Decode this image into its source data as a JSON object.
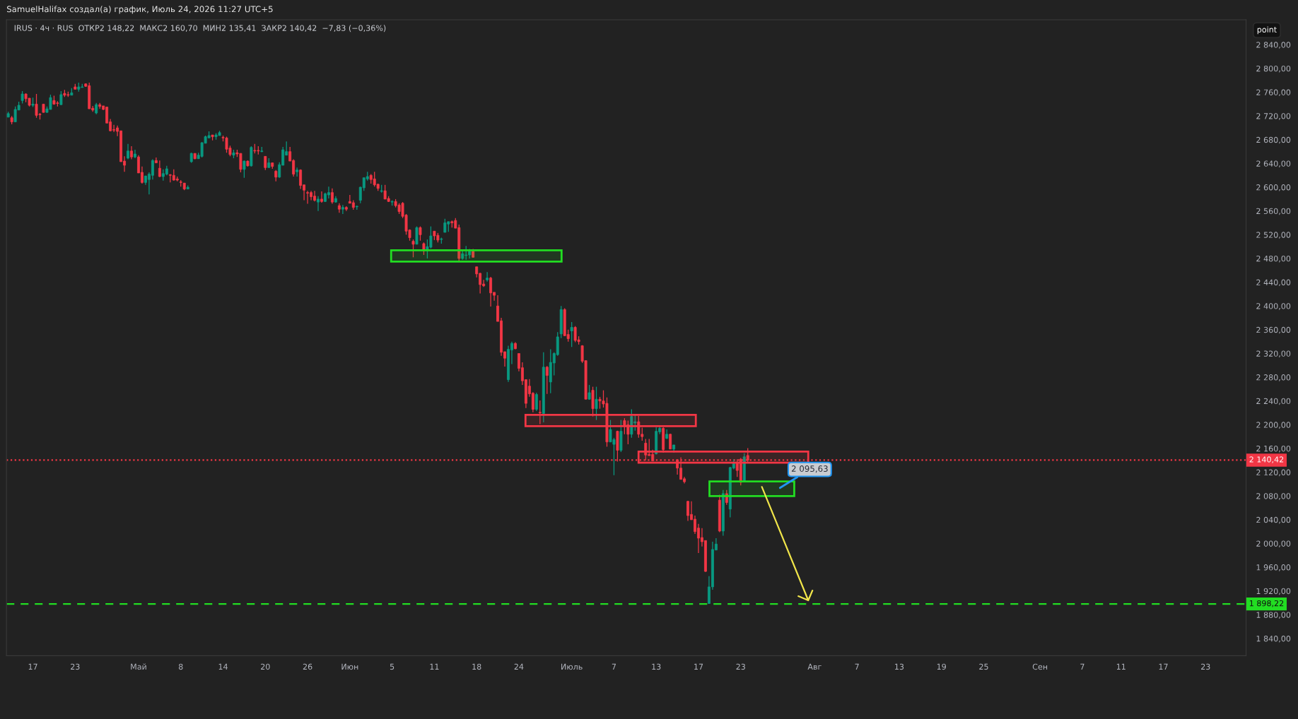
{
  "chart_data": {
    "type": "candlestick",
    "title": "SamuelHalifax создал(а) график, Июль 24, 2026 11:27 UTC+5",
    "subtitle": "IRUS · 4ч · RUS  ОТКР2 148,22  МАКС2 160,70  МИН2 135,41  ЗАКР2 140,42  −7,83 (−0,36%)",
    "categories": [
      null,
      null,
      null,
      null,
      null,
      null,
      null,
      "17",
      null,
      null,
      null,
      null,
      null,
      null,
      null,
      null,
      null,
      null,
      null,
      "23",
      null,
      null,
      null,
      null,
      null,
      null,
      null,
      null,
      null,
      null,
      null,
      null,
      null,
      null,
      null,
      null,
      null,
      "Май",
      null,
      null,
      null,
      null,
      null,
      null,
      null,
      null,
      null,
      null,
      null,
      "8",
      null,
      null,
      null,
      null,
      null,
      null,
      null,
      null,
      null,
      null,
      null,
      "14",
      null,
      null,
      null,
      null,
      null,
      null,
      null,
      null,
      null,
      null,
      null,
      "20",
      null,
      null,
      null,
      null,
      null,
      null,
      null,
      null,
      null,
      null,
      null,
      "26",
      null,
      null,
      null,
      null,
      null,
      null,
      null,
      null,
      null,
      null,
      null,
      "Июн",
      null,
      null,
      null,
      null,
      null,
      null,
      null,
      null,
      null,
      null,
      null,
      "5",
      null,
      null,
      null,
      null,
      null,
      null,
      null,
      null,
      null,
      null,
      null,
      "11",
      null,
      null,
      null,
      null,
      null,
      null,
      null,
      null,
      null,
      null,
      null,
      "18",
      null,
      null,
      null,
      null,
      null,
      null,
      null,
      null,
      null,
      null,
      null,
      "24",
      null,
      null,
      null,
      null,
      null,
      null,
      null,
      null,
      null,
      null,
      null,
      null,
      null,
      null,
      "Июль",
      null,
      null,
      null,
      null,
      null,
      null,
      null,
      null,
      null,
      null,
      null,
      "7",
      null,
      null,
      null,
      null,
      null,
      null,
      null,
      null,
      null,
      null,
      null,
      "13",
      null,
      null,
      null,
      null,
      null,
      null,
      null,
      null,
      null,
      null,
      null,
      "17",
      null,
      null,
      null,
      null,
      null,
      null,
      null,
      null,
      null,
      null,
      null,
      "23",
      null,
      null,
      null,
      null,
      null,
      null,
      null,
      null,
      null,
      null,
      null,
      null,
      null,
      null,
      null,
      null,
      null,
      null,
      null,
      null,
      "Авг",
      null,
      null,
      null,
      null,
      null,
      null,
      null,
      null,
      null,
      null,
      null,
      "7",
      null,
      null,
      null,
      null,
      null,
      null,
      null,
      null,
      null,
      null,
      null,
      "13",
      null,
      null,
      null,
      null,
      null,
      null,
      null,
      null,
      null,
      null,
      null,
      "19",
      null,
      null,
      null,
      null,
      null,
      null,
      null,
      null,
      null,
      null,
      null,
      "25",
      null,
      null,
      null,
      null,
      null,
      null,
      null,
      null,
      null,
      null,
      null,
      null,
      null,
      null,
      null,
      "Сен",
      null,
      null,
      null,
      null,
      null,
      null,
      null,
      null,
      null,
      null,
      null,
      "7",
      null,
      null,
      null,
      null,
      null,
      null,
      null,
      null,
      null,
      null,
      "11",
      null,
      null,
      null,
      null,
      null,
      null,
      null,
      null,
      null,
      null,
      null,
      "17",
      null,
      null,
      null,
      null,
      null,
      null,
      null,
      null,
      null,
      null,
      null,
      "23",
      null,
      null,
      null,
      null,
      null,
      null,
      null,
      null,
      null,
      null,
      null
    ],
    "ohlc": [
      [
        2718,
        2727,
        2718,
        2724
      ],
      [
        2717,
        2720,
        2706,
        2710
      ],
      [
        2710,
        2736,
        2710,
        2731
      ],
      [
        2730,
        2744,
        2730,
        2738
      ],
      [
        2746,
        2762,
        2741,
        2757
      ],
      [
        2757,
        2758,
        2743,
        2749
      ],
      [
        2750,
        2750,
        2736,
        2738
      ],
      [
        2738,
        2751,
        2735,
        2740
      ],
      [
        2740,
        2757,
        2717,
        2721
      ],
      [
        2723,
        2725,
        2714,
        2722
      ],
      [
        2740,
        2740,
        2726,
        2726
      ],
      [
        2726,
        2736,
        2726,
        2732
      ],
      [
        2731,
        2756,
        2731,
        2751
      ],
      [
        2746,
        2754,
        2739,
        2740
      ],
      [
        2742,
        2745,
        2736,
        2741
      ],
      [
        2739,
        2762,
        2739,
        2756
      ],
      [
        2758,
        2764,
        2752,
        2755
      ],
      [
        2756,
        2761,
        2752,
        2755
      ],
      [
        2755,
        2767,
        2755,
        2759
      ],
      [
        2769,
        2774,
        2765,
        2765
      ],
      [
        2765,
        2776,
        2761,
        2769
      ],
      [
        2768,
        2774,
        2768,
        2769
      ],
      [
        2774,
        2775,
        2769,
        2770
      ],
      [
        2771,
        2776,
        2732,
        2732
      ],
      [
        2733,
        2737,
        2727,
        2730
      ],
      [
        2725,
        2742,
        2723,
        2739
      ],
      [
        2739,
        2742,
        2732,
        2736
      ],
      [
        2737,
        2737,
        2730,
        2731
      ],
      [
        2735,
        2735,
        2708,
        2708
      ],
      [
        2710,
        2715,
        2694,
        2695
      ],
      [
        2697,
        2705,
        2693,
        2696
      ],
      [
        2700,
        2704,
        2686,
        2694
      ],
      [
        2695,
        2695,
        2643,
        2643
      ],
      [
        2644,
        2652,
        2626,
        2637
      ],
      [
        2649,
        2673,
        2647,
        2661
      ],
      [
        2661,
        2669,
        2647,
        2651
      ],
      [
        2651,
        2663,
        2649,
        2656
      ],
      [
        2651,
        2654,
        2624,
        2624
      ],
      [
        2625,
        2635,
        2606,
        2608
      ],
      [
        2608,
        2619,
        2604,
        2619
      ],
      [
        2613,
        2625,
        2588,
        2622
      ],
      [
        2620,
        2647,
        2613,
        2645
      ],
      [
        2645,
        2650,
        2641,
        2641
      ],
      [
        2632,
        2645,
        2617,
        2618
      ],
      [
        2618,
        2630,
        2611,
        2623
      ],
      [
        2622,
        2636,
        2620,
        2631
      ],
      [
        2621,
        2622,
        2608,
        2620
      ],
      [
        2620,
        2630,
        2611,
        2612
      ],
      [
        2614,
        2618,
        2610,
        2612
      ],
      [
        2609,
        2612,
        2601,
        2608
      ],
      [
        2607,
        2607,
        2595,
        2597
      ],
      [
        2597,
        2603,
        2597,
        2600
      ],
      [
        2643,
        2658,
        2641,
        2657
      ],
      [
        2657,
        2657,
        2647,
        2648
      ],
      [
        2648,
        2658,
        2648,
        2654
      ],
      [
        2652,
        2676,
        2650,
        2675
      ],
      [
        2674,
        2687,
        2674,
        2685
      ],
      [
        2683,
        2694,
        2683,
        2687
      ],
      [
        2688,
        2688,
        2679,
        2685
      ],
      [
        2685,
        2691,
        2680,
        2688
      ],
      [
        2687,
        2695,
        2687,
        2692
      ],
      [
        2684,
        2687,
        2677,
        2683
      ],
      [
        2683,
        2685,
        2658,
        2664
      ],
      [
        2666,
        2670,
        2652,
        2655
      ],
      [
        2654,
        2663,
        2649,
        2658
      ],
      [
        2658,
        2663,
        2651,
        2656
      ],
      [
        2657,
        2657,
        2625,
        2630
      ],
      [
        2630,
        2645,
        2616,
        2644
      ],
      [
        2644,
        2645,
        2635,
        2636
      ],
      [
        2636,
        2669,
        2635,
        2667
      ],
      [
        2662,
        2673,
        2657,
        2661
      ],
      [
        2662,
        2669,
        2655,
        2661
      ],
      [
        2660,
        2668,
        2659,
        2661
      ],
      [
        2652,
        2652,
        2629,
        2633
      ],
      [
        2633,
        2649,
        2633,
        2641
      ],
      [
        2641,
        2641,
        2631,
        2635
      ],
      [
        2627,
        2629,
        2610,
        2617
      ],
      [
        2617,
        2642,
        2616,
        2638
      ],
      [
        2637,
        2668,
        2637,
        2663
      ],
      [
        2654,
        2677,
        2654,
        2660
      ],
      [
        2660,
        2668,
        2644,
        2644
      ],
      [
        2645,
        2647,
        2618,
        2622
      ],
      [
        2626,
        2633,
        2618,
        2629
      ],
      [
        2629,
        2630,
        2597,
        2603
      ],
      [
        2604,
        2604,
        2578,
        2595
      ],
      [
        2591,
        2594,
        2572,
        2590
      ],
      [
        2591,
        2594,
        2578,
        2584
      ],
      [
        2585,
        2594,
        2576,
        2578
      ],
      [
        2575,
        2585,
        2560,
        2580
      ],
      [
        2580,
        2593,
        2574,
        2576
      ],
      [
        2576,
        2591,
        2575,
        2589
      ],
      [
        2587,
        2601,
        2581,
        2591
      ],
      [
        2591,
        2598,
        2572,
        2575
      ],
      [
        2575,
        2585,
        2574,
        2581
      ],
      [
        2569,
        2573,
        2557,
        2563
      ],
      [
        2563,
        2570,
        2555,
        2566
      ],
      [
        2566,
        2568,
        2560,
        2563
      ],
      [
        2576,
        2587,
        2573,
        2573
      ],
      [
        2574,
        2578,
        2562,
        2566
      ],
      [
        2567,
        2569,
        2562,
        2568
      ],
      [
        2578,
        2601,
        2573,
        2600
      ],
      [
        2599,
        2616,
        2594,
        2616
      ],
      [
        2614,
        2626,
        2611,
        2618
      ],
      [
        2620,
        2622,
        2606,
        2613
      ],
      [
        2614,
        2626,
        2601,
        2604
      ],
      [
        2605,
        2606,
        2594,
        2598
      ],
      [
        2593,
        2604,
        2591,
        2594
      ],
      [
        2594,
        2604,
        2580,
        2580
      ],
      [
        2581,
        2585,
        2575,
        2576
      ],
      [
        2575,
        2578,
        2569,
        2576
      ],
      [
        2576,
        2580,
        2566,
        2569
      ],
      [
        2570,
        2573,
        2555,
        2559
      ],
      [
        2573,
        2575,
        2548,
        2551
      ],
      [
        2553,
        2555,
        2520,
        2526
      ],
      [
        2528,
        2529,
        2510,
        2515
      ],
      [
        2509,
        2512,
        2482,
        2504
      ],
      [
        2504,
        2534,
        2504,
        2532
      ],
      [
        2532,
        2534,
        2510,
        2520
      ],
      [
        2505,
        2507,
        2486,
        2493
      ],
      [
        2493,
        2512,
        2480,
        2500
      ],
      [
        2499,
        2534,
        2497,
        2518
      ],
      [
        2526,
        2526,
        2511,
        2518
      ],
      [
        2519,
        2523,
        2507,
        2511
      ],
      [
        2512,
        2515,
        2505,
        2513
      ],
      [
        2524,
        2547,
        2524,
        2540
      ],
      [
        2538,
        2542,
        2525,
        2542
      ],
      [
        2542,
        2544,
        2532,
        2540
      ],
      [
        2544,
        2548,
        2531,
        2531
      ],
      [
        2532,
        2537,
        2474,
        2480
      ],
      [
        2480,
        2494,
        2478,
        2488
      ],
      [
        2485,
        2501,
        2478,
        2486
      ],
      [
        2486,
        2496,
        2480,
        2492
      ],
      [
        2492,
        2496,
        2482,
        2482
      ],
      [
        2466,
        2466,
        2448,
        2454
      ],
      [
        2455,
        2456,
        2421,
        2436
      ],
      [
        2437,
        2444,
        2432,
        2434
      ],
      [
        2444,
        2457,
        2441,
        2447
      ],
      [
        2447,
        2449,
        2399,
        2422
      ],
      [
        2423,
        2423,
        2409,
        2418
      ],
      [
        2400,
        2418,
        2374,
        2374
      ],
      [
        2375,
        2380,
        2316,
        2322
      ],
      [
        2323,
        2323,
        2298,
        2312
      ],
      [
        2276,
        2333,
        2272,
        2327
      ],
      [
        2326,
        2340,
        2302,
        2337
      ],
      [
        2337,
        2339,
        2327,
        2328
      ],
      [
        2320,
        2320,
        2290,
        2295
      ],
      [
        2296,
        2305,
        2267,
        2274
      ],
      [
        2276,
        2276,
        2228,
        2236
      ],
      [
        2265,
        2277,
        2247,
        2252
      ],
      [
        2253,
        2255,
        2221,
        2226
      ],
      [
        2226,
        2254,
        2223,
        2251
      ],
      [
        2221,
        2241,
        2201,
        2220
      ],
      [
        2219,
        2322,
        2204,
        2297
      ],
      [
        2297,
        2299,
        2252,
        2283
      ],
      [
        2272,
        2327,
        2253,
        2305
      ],
      [
        2304,
        2322,
        2283,
        2320
      ],
      [
        2318,
        2356,
        2316,
        2348
      ],
      [
        2353,
        2400,
        2346,
        2394
      ],
      [
        2394,
        2396,
        2349,
        2350
      ],
      [
        2352,
        2360,
        2340,
        2345
      ],
      [
        2358,
        2373,
        2331,
        2364
      ],
      [
        2364,
        2366,
        2339,
        2342
      ],
      [
        2343,
        2349,
        2335,
        2340
      ],
      [
        2333,
        2334,
        2304,
        2307
      ],
      [
        2308,
        2308,
        2243,
        2243
      ],
      [
        2243,
        2267,
        2242,
        2254
      ],
      [
        2258,
        2264,
        2214,
        2227
      ],
      [
        2227,
        2264,
        2208,
        2243
      ],
      [
        2243,
        2247,
        2227,
        2240
      ],
      [
        2240,
        2258,
        2229,
        2235
      ],
      [
        2236,
        2246,
        2163,
        2171
      ],
      [
        2171,
        2208,
        2171,
        2192
      ],
      [
        2167,
        2178,
        2115,
        2175
      ],
      [
        2189,
        2190,
        2138,
        2157
      ],
      [
        2157,
        2208,
        2154,
        2189
      ],
      [
        2207,
        2211,
        2184,
        2197
      ],
      [
        2200,
        2207,
        2167,
        2184
      ],
      [
        2184,
        2226,
        2178,
        2214
      ],
      [
        2203,
        2216,
        2190,
        2205
      ],
      [
        2205,
        2215,
        2178,
        2184
      ],
      [
        2184,
        2195,
        2173,
        2180
      ],
      [
        2169,
        2176,
        2140,
        2149
      ],
      [
        2150,
        2176,
        2148,
        2148
      ],
      [
        2150,
        2158,
        2139,
        2139
      ],
      [
        2151,
        2196,
        2150,
        2189
      ],
      [
        2188,
        2199,
        2184,
        2194
      ],
      [
        2194,
        2196,
        2153,
        2158
      ],
      [
        2177,
        2192,
        2176,
        2184
      ],
      [
        2184,
        2185,
        2159,
        2159
      ],
      [
        2159,
        2166,
        2153,
        2166
      ],
      [
        2141,
        2142,
        2116,
        2127
      ],
      [
        2127,
        2145,
        2108,
        2108
      ],
      [
        2109,
        2112,
        2101,
        2104
      ],
      [
        2071,
        2072,
        2038,
        2047
      ],
      [
        2049,
        2071,
        2040,
        2040
      ],
      [
        2041,
        2047,
        2016,
        2020
      ],
      [
        2026,
        2033,
        1984,
        2009
      ],
      [
        2010,
        2026,
        1995,
        2003
      ],
      [
        2005,
        2005,
        1952,
        1953
      ],
      [
        1899,
        1945,
        1898.22,
        1927
      ],
      [
        1927,
        2003,
        1922,
        1990
      ],
      [
        1989,
        2009,
        1989,
        1999
      ],
      [
        2073,
        2082,
        2019,
        2021
      ],
      [
        2021,
        2090,
        2013,
        2084
      ],
      [
        2084,
        2090,
        2065,
        2069
      ],
      [
        2058,
        2129,
        2044,
        2128
      ],
      [
        2127,
        2142,
        2125,
        2137
      ],
      [
        2135,
        2142,
        2112,
        2123
      ],
      [
        2142,
        2144,
        2098,
        2103
      ],
      [
        2104,
        2152,
        2103,
        2146
      ],
      [
        2148.22,
        2160.7,
        2135.41,
        2140.42
      ],
      null,
      null,
      null,
      null,
      null,
      null,
      null,
      null,
      null,
      null,
      null,
      null,
      null,
      null,
      null,
      null,
      null,
      null,
      null,
      null,
      null,
      null,
      null,
      null,
      null,
      null,
      null,
      null,
      null,
      null,
      null,
      null,
      null,
      null,
      null,
      null,
      null,
      null,
      null,
      null,
      null,
      null,
      null,
      null,
      null,
      null,
      null,
      null,
      null,
      null,
      null,
      null,
      null,
      null,
      null,
      null,
      null,
      null,
      null,
      null,
      null,
      null,
      null,
      null,
      null,
      null,
      null,
      null,
      null,
      null,
      null,
      null,
      null,
      null,
      null,
      null,
      null,
      null,
      null,
      null,
      null,
      null,
      null,
      null,
      null,
      null,
      null,
      null,
      null,
      null,
      null,
      null,
      null,
      null,
      null,
      null,
      null,
      null,
      null,
      null,
      null,
      null,
      null,
      null,
      null,
      null,
      null,
      null,
      null,
      null,
      null,
      null,
      null,
      null,
      null,
      null,
      null,
      null,
      null,
      null,
      null,
      null,
      null,
      null,
      null,
      null,
      null,
      null,
      null,
      null,
      null,
      null,
      null,
      null,
      null,
      null,
      null,
      null,
      null,
      null,
      null
    ],
    "colors": [
      "#089981",
      "#f23645",
      "#089981",
      "#089981",
      "#089981",
      "#f23645",
      "#f23645",
      "#089981",
      "#f23645",
      "#f23645",
      "#f23645",
      "#089981",
      "#089981",
      "#f23645",
      "#f23645",
      "#089981",
      "#f23645",
      "#f23645",
      "#089981",
      "#f23645",
      "#089981",
      "#089981",
      "#f23645",
      "#f23645",
      "#f23645",
      "#089981",
      "#f23645",
      "#f23645",
      "#f23645",
      "#f23645",
      "#f23645",
      "#f23645",
      "#f23645",
      "#f23645",
      "#089981",
      "#f23645",
      "#089981",
      "#f23645",
      "#f23645",
      "#089981",
      "#089981",
      "#089981",
      "#f23645",
      "#f23645",
      "#089981",
      "#089981",
      "#f23645",
      "#f23645",
      "#f23645",
      "#f23645",
      "#f23645",
      "#089981",
      "#089981",
      "#f23645",
      "#089981",
      "#089981",
      "#089981",
      "#089981",
      "#f23645",
      "#089981",
      "#089981",
      "#f23645",
      "#f23645",
      "#f23645",
      "#089981",
      "#f23645",
      "#f23645",
      "#089981",
      "#f23645",
      "#089981",
      "#f23645",
      "#f23645",
      "#089981",
      "#f23645",
      "#089981",
      "#f23645",
      "#f23645",
      "#089981",
      "#089981",
      "#089981",
      "#f23645",
      "#f23645",
      "#089981",
      "#f23645",
      "#f23645",
      "#f23645",
      "#f23645",
      "#f23645",
      "#089981",
      "#f23645",
      "#089981",
      "#089981",
      "#f23645",
      "#089981",
      "#f23645",
      "#089981",
      "#f23645",
      "#f23645",
      "#f23645",
      "#089981",
      "#089981",
      "#089981",
      "#089981",
      "#f23645",
      "#f23645",
      "#f23645",
      "#089981",
      "#f23645",
      "#f23645",
      "#089981",
      "#f23645",
      "#f23645",
      "#f23645",
      "#f23645",
      "#f23645",
      "#f23645",
      "#089981",
      "#f23645",
      "#f23645",
      "#089981",
      "#089981",
      "#f23645",
      "#f23645",
      "#089981",
      "#089981",
      "#089981",
      "#f23645",
      "#f23645",
      "#f23645",
      "#089981",
      "#089981",
      "#089981",
      "#f23645",
      "#f23645",
      "#f23645",
      "#f23645",
      "#089981",
      "#f23645",
      "#f23645",
      "#f23645",
      "#f23645",
      "#f23645",
      "#089981",
      "#089981",
      "#f23645",
      "#f23645",
      "#f23645",
      "#f23645",
      "#f23645",
      "#f23645",
      "#089981",
      "#f23645",
      "#089981",
      "#f23645",
      "#089981",
      "#089981",
      "#089981",
      "#089981",
      "#f23645",
      "#f23645",
      "#089981",
      "#f23645",
      "#f23645",
      "#f23645",
      "#f23645",
      "#089981",
      "#f23645",
      "#089981",
      "#f23645",
      "#f23645",
      "#f23645",
      "#089981",
      "#089981",
      "#f23645",
      "#089981",
      "#f23645",
      "#f23645",
      "#089981",
      "#089981",
      "#f23645",
      "#f23645",
      "#f23645",
      "#f23645",
      "#f23645",
      "#089981",
      "#089981",
      "#f23645",
      "#089981",
      "#f23645",
      "#089981",
      "#f23645",
      "#f23645",
      "#f23645",
      "#f23645",
      "#f23645",
      "#f23645",
      "#f23645",
      "#f23645",
      "#f23645",
      "#089981",
      "#089981",
      "#089981",
      "#f23645",
      "#089981",
      "#f23645",
      "#089981",
      "#089981",
      "#f23645",
      "#f23645",
      "#089981",
      "#f23645",
      null,
      null,
      null,
      null,
      null,
      null,
      null,
      null,
      null,
      null,
      null,
      null,
      null,
      null,
      null,
      null,
      null,
      null,
      null,
      null,
      null,
      null,
      null,
      null,
      null,
      null,
      null,
      null,
      null,
      null,
      null,
      null,
      null,
      null,
      null,
      null,
      null,
      null,
      null,
      null,
      null,
      null,
      null,
      null,
      null,
      null,
      null,
      null,
      null,
      null,
      null,
      null,
      null,
      null,
      null,
      null,
      null,
      null,
      null,
      null,
      null,
      null,
      null,
      null,
      null,
      null,
      null,
      null,
      null,
      null,
      null,
      null,
      null,
      null,
      null,
      null,
      null,
      null,
      null,
      null,
      null,
      null,
      null,
      null,
      null,
      null,
      null,
      null,
      null,
      null,
      null,
      null,
      null,
      null,
      null,
      null,
      null,
      null,
      null,
      null,
      null,
      null,
      null,
      null,
      null,
      null,
      null,
      null,
      null,
      null,
      null,
      null,
      null,
      null,
      null,
      null,
      null,
      null,
      null,
      null,
      null,
      null,
      null,
      null,
      null,
      null,
      null,
      null,
      null,
      null,
      null,
      null,
      null,
      null,
      null,
      null,
      null,
      null,
      null,
      null,
      null
    ],
    "ref_lines": [
      {
        "axis": "y",
        "value": 2140.42,
        "label": "2 140,42",
        "color": "#f23645",
        "line_style": "dotted"
      },
      {
        "axis": "y",
        "value": 1898.22,
        "label": "1 898,22",
        "color": "#22dd22",
        "line_style": "dashed"
      }
    ],
    "annotations": [
      "2 095,63",
      "point"
    ],
    "ylim": [
      1811,
      2882
    ],
    "yticks": [
      {
        "value": 1840,
        "label": "1 840,00"
      },
      {
        "value": 1880,
        "label": "1 880,00"
      },
      {
        "value": 1920,
        "label": "1 920,00"
      },
      {
        "value": 1960,
        "label": "1 960,00"
      },
      {
        "value": 2000,
        "label": "2 000,00"
      },
      {
        "value": 2040,
        "label": "2 040,00"
      },
      {
        "value": 2080,
        "label": "2 080,00"
      },
      {
        "value": 2120,
        "label": "2 120,00"
      },
      {
        "value": 2160,
        "label": "2 160,00"
      },
      {
        "value": 2200,
        "label": "2 200,00"
      },
      {
        "value": 2240,
        "label": "2 240,00"
      },
      {
        "value": 2280,
        "label": "2 280,00"
      },
      {
        "value": 2320,
        "label": "2 320,00"
      },
      {
        "value": 2360,
        "label": "2 360,00"
      },
      {
        "value": 2400,
        "label": "2 400,00"
      },
      {
        "value": 2440,
        "label": "2 440,00"
      },
      {
        "value": 2480,
        "label": "2 480,00"
      },
      {
        "value": 2520,
        "label": "2 520,00"
      },
      {
        "value": 2560,
        "label": "2 560,00"
      },
      {
        "value": 2600,
        "label": "2 600,00"
      },
      {
        "value": 2640,
        "label": "2 640,00"
      },
      {
        "value": 2680,
        "label": "2 680,00"
      },
      {
        "value": 2720,
        "label": "2 720,00"
      },
      {
        "value": 2760,
        "label": "2 760,00"
      },
      {
        "value": 2800,
        "label": "2 800,00"
      },
      {
        "value": 2840,
        "label": "2 840,00"
      }
    ]
  }
}
